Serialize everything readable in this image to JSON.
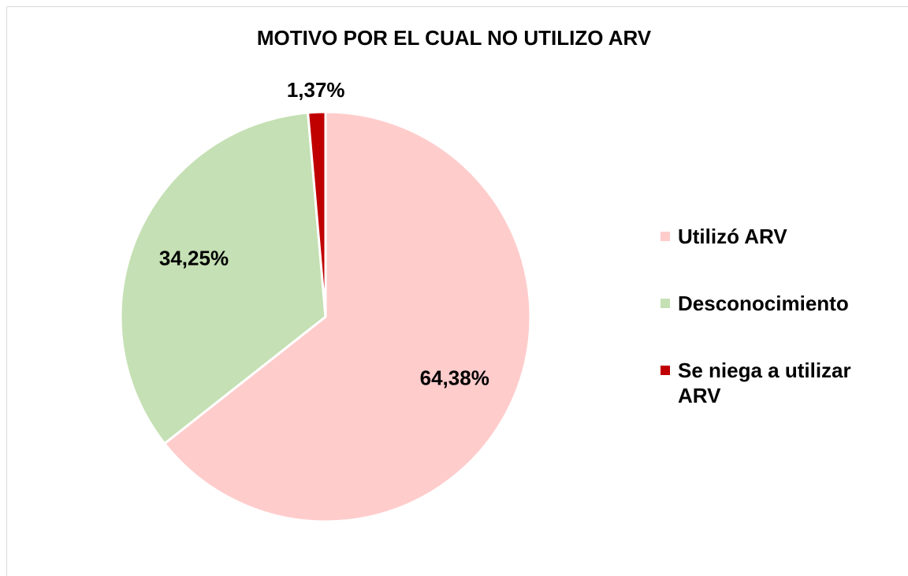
{
  "chart_data": {
    "type": "pie",
    "title": "MOTIVO POR EL CUAL NO UTILIZO ARV",
    "categories": [
      "Utilizó ARV",
      "Desconocimiento",
      "Se niega a utilizar ARV"
    ],
    "values": [
      64.38,
      34.25,
      1.37
    ],
    "value_labels": [
      "64,38%",
      "34,25%",
      "1,37%"
    ],
    "colors": [
      "#ffcccc",
      "#c5e0b4",
      "#c00000"
    ],
    "legend": "right"
  }
}
